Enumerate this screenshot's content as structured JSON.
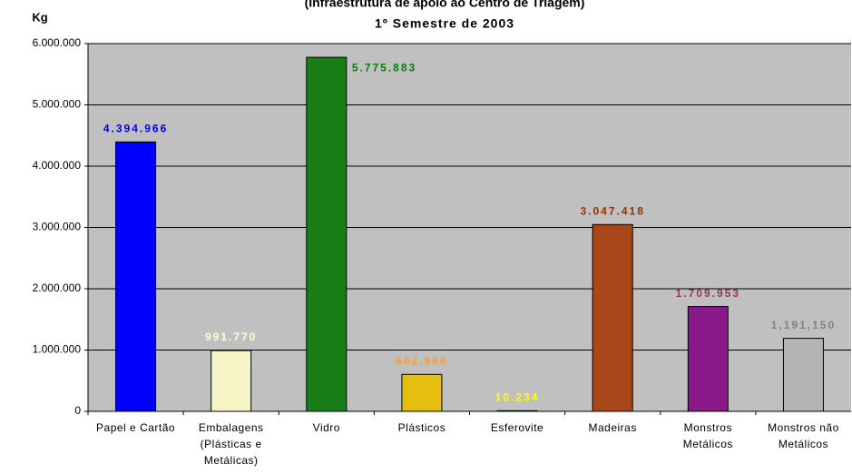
{
  "chart_data": {
    "type": "bar",
    "title": "(Infraestrutura de apoio ao Centro de Triagem)",
    "subtitle": "1º Semestre de 2003",
    "y_label": "Kg",
    "categories": [
      "Papel e Cartão",
      "Embalagens (Plásticas e Metálicas)",
      "Vidro",
      "Plásticos",
      "Esferovite",
      "Madeiras",
      "Monstros Metálicos",
      "Monstros não Metálicos"
    ],
    "values": [
      4394966,
      991770,
      5775883,
      602960,
      10234,
      3047418,
      1709953,
      1191150
    ],
    "value_labels": [
      "4.394.966",
      "991.770",
      "5.775.883",
      "602.960",
      "10.234",
      "3.047.418",
      "1.709.953",
      "1,191,150"
    ],
    "colors": [
      "#0000ff",
      "#f7f5c6",
      "#1a7d1a",
      "#e6be10",
      "#ffff00",
      "#a8481a",
      "#8a1a8a",
      "#b4b4b4"
    ],
    "label_colors": [
      "#0000ff",
      "#ffffcc",
      "#008000",
      "#ff9933",
      "#ffff00",
      "#993300",
      "#993366",
      "#808080"
    ],
    "ylim": [
      0,
      6000000
    ],
    "yticks": [
      0,
      {
        "value": 1000000,
        "label": "1.000.000"
      },
      {
        "value": 2000000,
        "label": "2.000.000"
      },
      {
        "value": 3000000,
        "label": "3.000.000"
      },
      {
        "value": 4000000,
        "label": "4.000.000"
      },
      {
        "value": 5000000,
        "label": "5.000.000"
      },
      {
        "value": 6000000,
        "label": "6.000.000"
      }
    ],
    "grid": true
  }
}
